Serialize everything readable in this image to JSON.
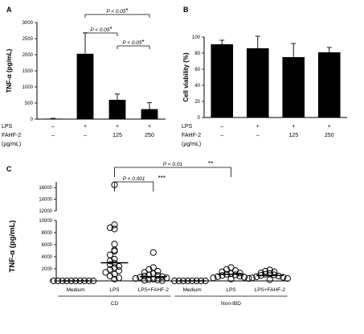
{
  "chart_data": [
    {
      "panel": "A",
      "type": "bar",
      "ylabel": "TNF-α (pg/mL)",
      "ylim": [
        0,
        3000
      ],
      "yticks": [
        0,
        500,
        1000,
        1500,
        2000,
        2500,
        3000
      ],
      "conditions": {
        "row1_label": "LPS",
        "row2_label": "FAHF-2",
        "row2_unit": "(μg/mL)",
        "lps": [
          "–",
          "+",
          "+",
          "+"
        ],
        "fahf2": [
          "–",
          "–",
          "125",
          "250"
        ]
      },
      "values": [
        15,
        2030,
        600,
        310
      ],
      "errors": [
        10,
        650,
        180,
        200
      ],
      "bar_color": "#000000",
      "comparisons": [
        {
          "from": 1,
          "to": 3,
          "label": "P < 0.05",
          "stars": "*"
        },
        {
          "from": 1,
          "to": 2,
          "label": "P < 0.05",
          "stars": "*"
        },
        {
          "from": 2,
          "to": 3,
          "label": "P < 0.05",
          "stars": "*"
        }
      ]
    },
    {
      "panel": "B",
      "type": "bar",
      "ylabel": "Cell viability (%)",
      "ylim": [
        0,
        100
      ],
      "yticks": [
        0,
        20,
        40,
        60,
        80,
        100
      ],
      "conditions": {
        "row1_label": "LPS",
        "row2_label": "FAHF-2",
        "row2_unit": "(μg/mL)",
        "lps": [
          "–",
          "+",
          "+",
          "+"
        ],
        "fahf2": [
          "–",
          "–",
          "125",
          "250"
        ]
      },
      "values": [
        91,
        86,
        75,
        81
      ],
      "errors": [
        5,
        15,
        17,
        6
      ],
      "bar_color": "#000000"
    },
    {
      "panel": "C",
      "type": "scatter",
      "ylabel": "TNF-α (pg/mL)",
      "yticks": [
        0,
        2000,
        4000,
        6000,
        8000,
        10000,
        12000,
        14000,
        16000
      ],
      "y_break": [
        10000,
        12000
      ],
      "categories": [
        "Medium",
        "LPS",
        "LPS+FAHF-2",
        "Medium",
        "LPS",
        "LPS+FAHF-2"
      ],
      "groups": [
        {
          "label": "CD",
          "categories": [
            0,
            1,
            2
          ]
        },
        {
          "label": "Non-IBD",
          "categories": [
            3,
            4,
            5
          ]
        }
      ],
      "points": [
        [
          0,
          0,
          0,
          0,
          0,
          0,
          0,
          0,
          0,
          0
        ],
        [
          16500,
          9300,
          8800,
          8600,
          6100,
          5100,
          4900,
          4300,
          3600,
          3300,
          2900,
          2700,
          2400,
          2200,
          1900,
          1700,
          1400,
          1100,
          800,
          500,
          300
        ],
        [
          4700,
          2200,
          1900,
          1600,
          1400,
          1200,
          1000,
          900,
          800,
          700,
          600,
          500,
          400,
          300,
          200,
          150,
          100,
          50
        ],
        [
          0,
          0,
          0,
          0,
          0,
          0,
          0,
          0
        ],
        [
          2200,
          1900,
          1700,
          1500,
          1300,
          1200,
          1100,
          1000,
          900,
          800,
          700,
          600,
          500,
          400,
          300
        ],
        [
          1800,
          1600,
          1500,
          1300,
          1200,
          1100,
          1000,
          900,
          800,
          700,
          600,
          500,
          400,
          200
        ]
      ],
      "medians": [
        0,
        3000,
        700,
        0,
        1100,
        900
      ],
      "comparisons": [
        {
          "from": 1,
          "to": 2,
          "label": "P < 0.001",
          "stars": "***"
        },
        {
          "from": 1,
          "to": 4,
          "label": "P < 0.01",
          "stars": "**"
        }
      ]
    }
  ]
}
